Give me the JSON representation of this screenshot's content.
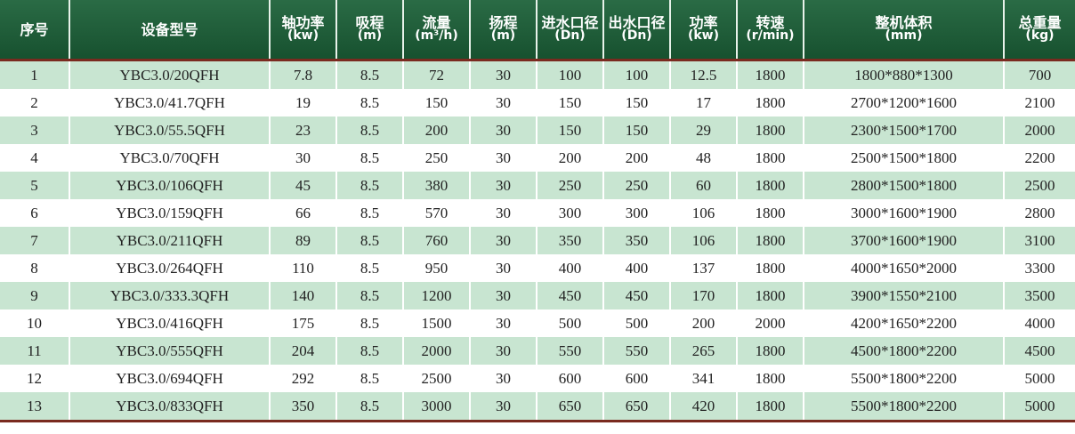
{
  "table": {
    "header": [
      {
        "label": "序号"
      },
      {
        "label": "设备型号"
      },
      {
        "label": "轴功率",
        "unit": "(kw)"
      },
      {
        "label": "吸程",
        "unit": "(m)"
      },
      {
        "label": "流量",
        "unit": "(m³/h)"
      },
      {
        "label": "扬程",
        "unit": "(m)"
      },
      {
        "label": "进水口径",
        "unit": "(Dn)"
      },
      {
        "label": "出水口径",
        "unit": "(Dn)"
      },
      {
        "label": "功率",
        "unit": "(kw)"
      },
      {
        "label": "转速",
        "unit": "(r/min)"
      },
      {
        "label": "整机体积",
        "unit": "(mm)"
      },
      {
        "label": "总重量",
        "unit": "(kg)"
      }
    ],
    "rows": [
      [
        1,
        "YBC3.0/20QFH",
        7.8,
        8.5,
        72,
        30,
        100,
        100,
        12.5,
        1800,
        "1800*880*1300",
        700
      ],
      [
        2,
        "YBC3.0/41.7QFH",
        19,
        8.5,
        150,
        30,
        150,
        150,
        17,
        1800,
        "2700*1200*1600",
        2100
      ],
      [
        3,
        "YBC3.0/55.5QFH",
        23,
        8.5,
        200,
        30,
        150,
        150,
        29,
        1800,
        "2300*1500*1700",
        2000
      ],
      [
        4,
        "YBC3.0/70QFH",
        30,
        8.5,
        250,
        30,
        200,
        200,
        48,
        1800,
        "2500*1500*1800",
        2200
      ],
      [
        5,
        "YBC3.0/106QFH",
        45,
        8.5,
        380,
        30,
        250,
        250,
        60,
        1800,
        "2800*1500*1800",
        2500
      ],
      [
        6,
        "YBC3.0/159QFH",
        66,
        8.5,
        570,
        30,
        300,
        300,
        106,
        1800,
        "3000*1600*1900",
        2800
      ],
      [
        7,
        "YBC3.0/211QFH",
        89,
        8.5,
        760,
        30,
        350,
        350,
        106,
        1800,
        "3700*1600*1900",
        3100
      ],
      [
        8,
        "YBC3.0/264QFH",
        110,
        8.5,
        950,
        30,
        400,
        400,
        137,
        1800,
        "4000*1650*2000",
        3300
      ],
      [
        9,
        "YBC3.0/333.3QFH",
        140,
        8.5,
        1200,
        30,
        450,
        450,
        170,
        1800,
        "3900*1550*2100",
        3500
      ],
      [
        10,
        "YBC3.0/416QFH",
        175,
        8.5,
        1500,
        30,
        500,
        500,
        200,
        2000,
        "4200*1650*2200",
        4000
      ],
      [
        11,
        "YBC3.0/555QFH",
        204,
        8.5,
        2000,
        30,
        550,
        550,
        265,
        1800,
        "4500*1800*2200",
        4500
      ],
      [
        12,
        "YBC3.0/694QFH",
        292,
        8.5,
        2500,
        30,
        600,
        600,
        341,
        1800,
        "5500*1800*2200",
        5000
      ],
      [
        13,
        "YBC3.0/833QFH",
        350,
        8.5,
        3000,
        30,
        650,
        650,
        420,
        1800,
        "5500*1800*2200",
        5000
      ]
    ]
  }
}
